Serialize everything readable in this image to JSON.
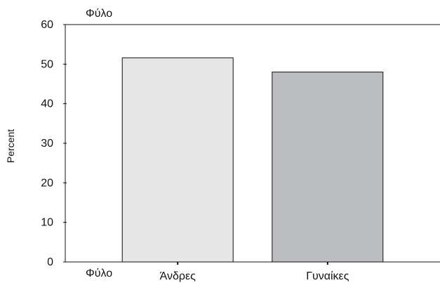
{
  "chart_data": {
    "type": "bar",
    "title": "Φύλο",
    "xlabel": "Φύλο",
    "ylabel": "Percent",
    "categories": [
      "Άνδρες",
      "Γυναίκες"
    ],
    "values": [
      51.6,
      48.0
    ],
    "ylim": [
      0,
      60
    ],
    "yticks": [
      0,
      10,
      20,
      30,
      40,
      50,
      60
    ],
    "grid": false,
    "legend": "none",
    "colors": [
      "#e6e6e6",
      "#bcbdc0"
    ],
    "stroke_color": "#111111"
  }
}
